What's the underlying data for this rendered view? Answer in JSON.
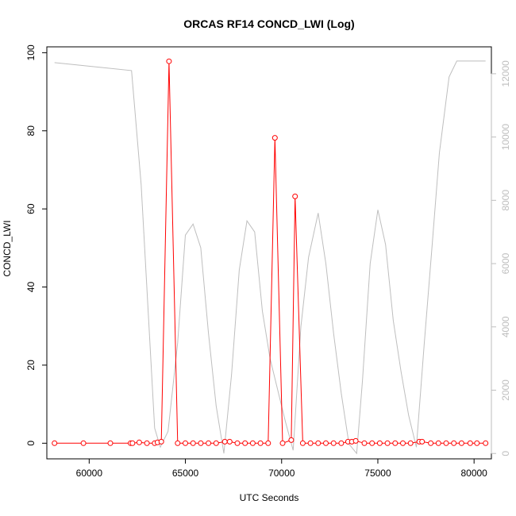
{
  "chart_data": {
    "type": "line",
    "title": "ORCAS RF14 CONCD_LWI (Log)",
    "xlabel": "UTC Seconds",
    "ylabel": "CONCD_LWI",
    "xlim": [
      57800,
      80900
    ],
    "ylim": [
      -4,
      101.5
    ],
    "y2lim": [
      -170,
      12850
    ],
    "x_ticks": [
      60000,
      65000,
      70000,
      75000,
      80000
    ],
    "y_ticks": [
      0,
      20,
      40,
      60,
      80,
      100
    ],
    "y2_ticks": [
      0,
      2000,
      4000,
      6000,
      8000,
      10000,
      12000
    ],
    "grid": false,
    "colors": {
      "primary": "#ff0000",
      "secondary": "#bebebe",
      "axis": "#000000"
    },
    "series": [
      {
        "axis": "left",
        "style": "line+points",
        "x": [
          58200,
          59700,
          61100,
          62150,
          62250,
          62600,
          63000,
          63400,
          63550,
          63750,
          64150,
          64600,
          65000,
          65400,
          65800,
          66200,
          66600,
          67050,
          67300,
          67700,
          68100,
          68500,
          68900,
          69300,
          69650,
          70050,
          70500,
          70700,
          71100,
          71500,
          71900,
          72300,
          72700,
          73100,
          73450,
          73650,
          73850,
          74300,
          74700,
          75100,
          75500,
          75900,
          76300,
          76700,
          77150,
          77300,
          77750,
          78150,
          78550,
          78950,
          79350,
          79800,
          80150,
          80600
        ],
        "y": [
          0,
          0,
          0,
          0,
          0,
          0.2,
          0,
          0,
          0.2,
          0.4,
          97.8,
          0,
          0,
          0,
          0,
          0,
          0,
          0.4,
          0.4,
          0,
          0,
          0,
          0,
          0,
          78.2,
          0,
          0.8,
          63.2,
          0,
          0,
          0,
          0,
          0,
          0,
          0.4,
          0.4,
          0.6,
          0,
          0,
          0,
          0,
          0,
          0,
          0,
          0.4,
          0.4,
          0,
          0,
          0,
          0,
          0,
          0,
          0,
          0
        ]
      },
      {
        "axis": "right",
        "style": "line",
        "x": [
          58200,
          62200,
          62700,
          63400,
          63700,
          64100,
          64600,
          65000,
          65400,
          65800,
          66200,
          66600,
          67000,
          67400,
          67800,
          68200,
          68600,
          69000,
          69400,
          69800,
          70200,
          70600,
          71000,
          71400,
          71900,
          72300,
          72700,
          73100,
          73500,
          73900,
          74200,
          74600,
          75000,
          75400,
          75800,
          76200,
          76600,
          77000,
          77400,
          77800,
          78200,
          78700,
          79100,
          79400,
          80600
        ],
        "y": [
          12350,
          12100,
          8500,
          800,
          200,
          700,
          3500,
          6900,
          7250,
          6500,
          3800,
          1500,
          0,
          2500,
          5800,
          7350,
          7000,
          4500,
          3000,
          2000,
          1000,
          100,
          4000,
          6200,
          7600,
          6000,
          3800,
          1900,
          300,
          0,
          2300,
          6000,
          7700,
          6600,
          4200,
          2600,
          1200,
          200,
          3400,
          6400,
          9500,
          11900,
          12400,
          12400,
          12400
        ]
      }
    ]
  }
}
